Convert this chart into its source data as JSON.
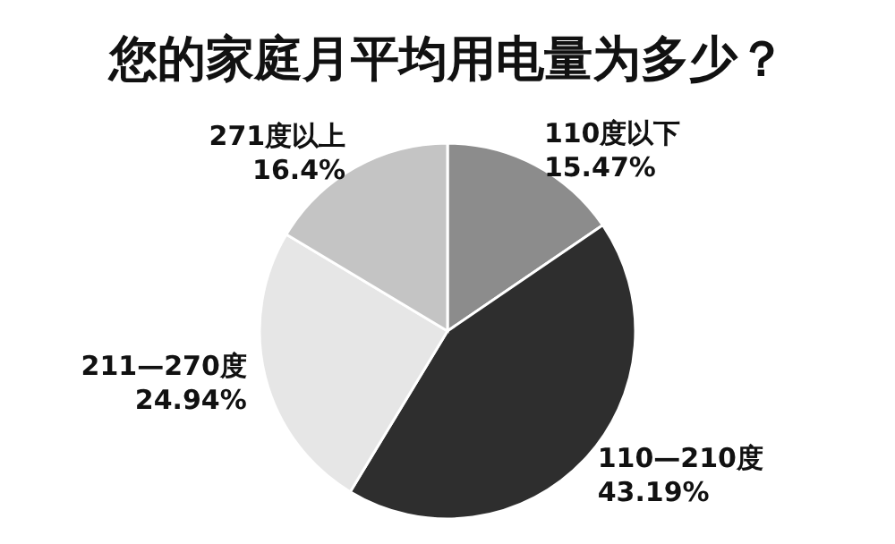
{
  "chart_data": {
    "type": "pie",
    "title": "您的家庭月平均用电量为多少？",
    "categories": [
      "110度以下",
      "110—210度",
      "211—270度",
      "271度以上"
    ],
    "values": [
      15.47,
      43.19,
      24.94,
      16.4
    ],
    "value_labels": [
      "15.47%",
      "43.19%",
      "24.94%",
      "16.4%"
    ],
    "colors": [
      "#8c8c8c",
      "#2e2e2e",
      "#e6e6e6",
      "#c4c4c4"
    ]
  }
}
